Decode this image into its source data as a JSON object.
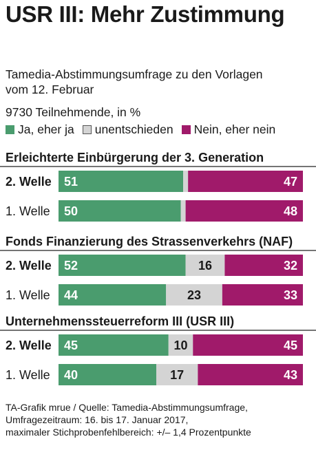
{
  "title": "USR III: Mehr Zustimmung",
  "subtitle_line1": "Tamedia-Abstimmungsumfrage zu den Vorlagen",
  "subtitle_line2": "vom 12. Februar",
  "subtitle_line3": "9730 Teilnehmende, in %",
  "legend": {
    "ja": "Ja, eher ja",
    "unentschieden": "unentschieden",
    "nein": "Nein, eher nein"
  },
  "colors": {
    "ja": "#4a9c6e",
    "unentschieden": "#d4d4d4",
    "nein": "#a01a6a"
  },
  "chart_data": {
    "type": "bar",
    "stacked": true,
    "orientation": "horizontal",
    "xlim": [
      0,
      100
    ],
    "groups": [
      {
        "title": "Erleichterte Einbürgerung der 3. Generation",
        "rows": [
          {
            "label": "2. Welle",
            "bold": true,
            "ja": 51,
            "unentschieden": 2,
            "nein": 47,
            "ja_label": "51",
            "unentschieden_label": "",
            "nein_label": "47"
          },
          {
            "label": "1. Welle",
            "bold": false,
            "ja": 50,
            "unentschieden": 2,
            "nein": 48,
            "ja_label": "50",
            "unentschieden_label": "",
            "nein_label": "48"
          }
        ]
      },
      {
        "title": "Fonds Finanzierung des Strassenverkehrs (NAF)",
        "rows": [
          {
            "label": "2. Welle",
            "bold": true,
            "ja": 52,
            "unentschieden": 16,
            "nein": 32,
            "ja_label": "52",
            "unentschieden_label": "16",
            "nein_label": "32"
          },
          {
            "label": "1. Welle",
            "bold": false,
            "ja": 44,
            "unentschieden": 23,
            "nein": 33,
            "ja_label": "44",
            "unentschieden_label": "23",
            "nein_label": "33"
          }
        ]
      },
      {
        "title": "Unternehmenssteuerreform III (USR III)",
        "rows": [
          {
            "label": "2. Welle",
            "bold": true,
            "ja": 45,
            "unentschieden": 10,
            "nein": 45,
            "ja_label": "45",
            "unentschieden_label": "10",
            "nein_label": "45"
          },
          {
            "label": "1. Welle",
            "bold": false,
            "ja": 40,
            "unentschieden": 17,
            "nein": 43,
            "ja_label": "40",
            "unentschieden_label": "17",
            "nein_label": "43"
          }
        ]
      }
    ]
  },
  "footer_line1": "TA-Grafik mrue / Quelle: Tamedia-Abstimmungsumfrage,",
  "footer_line2": "Umfragezeitraum: 16. bis 17. Januar 2017,",
  "footer_line3": "maximaler Stichprobenfehlbereich: +/– 1,4 Prozentpunkte"
}
